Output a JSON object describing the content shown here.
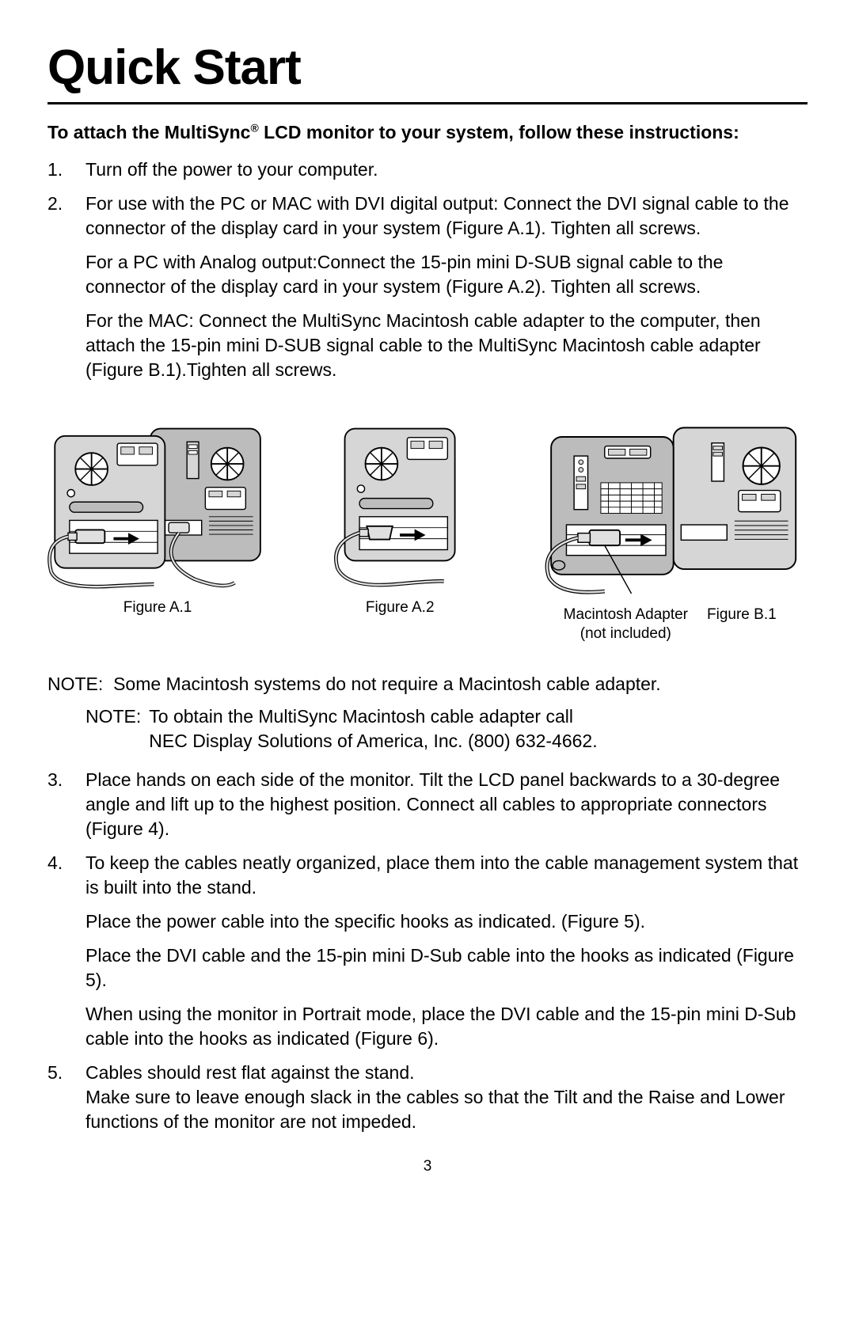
{
  "title": "Quick Start",
  "intro_html": "To attach the MultiSync<sup>®</sup> LCD monitor to your system, follow these instructions:",
  "step1": {
    "num": "1.",
    "text": "Turn off the power to your computer."
  },
  "step2": {
    "num": "2.",
    "p1": "For use with the PC or MAC with DVI digital output: Connect the DVI signal cable to the connector of the display card in your system (Figure A.1). Tighten all screws.",
    "p2": "For a PC with Analog output:Connect the 15-pin mini D-SUB signal cable to the connector of the display card in your system (Figure A.2). Tighten all screws.",
    "p3": "For the MAC: Connect the MultiSync Macintosh cable adapter to the computer, then attach the 15-pin mini D-SUB signal cable to the MultiSync Macintosh cable adapter (Figure B.1).Tighten all screws."
  },
  "figures": {
    "a1": {
      "caption": "Figure A.1"
    },
    "a2": {
      "caption": "Figure A.2"
    },
    "b1": {
      "caption1": "Macintosh Adapter",
      "caption1b": "(not included)",
      "caption2": "Figure B.1"
    }
  },
  "note_main_label": "NOTE:",
  "note_main": "Some Macintosh systems do not require a Macintosh cable adapter.",
  "note_sub_label": "NOTE:",
  "note_sub_l1": "To obtain the MultiSync Macintosh cable adapter call",
  "note_sub_l2": "NEC Display Solutions of America, Inc. (800) 632-4662.",
  "step3": {
    "num": "3.",
    "text": "Place hands on each side of the monitor. Tilt the LCD panel backwards to a 30-degree angle and lift up to the highest position. Connect all cables to appropriate connectors (Figure 4)."
  },
  "step4": {
    "num": "4.",
    "p1": "To keep the cables neatly organized, place them into the cable management system that is built into the stand.",
    "p2": "Place the power cable into the specific hooks as indicated. (Figure 5).",
    "p3": "Place the DVI cable and the 15-pin mini D-Sub cable into the hooks as indicated (Figure 5).",
    "p4": "When using the monitor in Portrait mode, place the DVI cable and the 15-pin mini D-Sub cable into the hooks as indicated (Figure 6)."
  },
  "step5": {
    "num": "5.",
    "p1": "Cables should rest flat against the stand.",
    "p2": "Make sure to leave enough slack in the cables so that the Tilt and the Raise and Lower functions of the monitor are not impeded."
  },
  "page_number": "3",
  "diagram": {
    "body_fill": "#d6d6d6",
    "shadow_fill": "#bcbcbc",
    "stroke": "#000000",
    "stroke_w": 2,
    "port_fill": "#ffffff",
    "fan_fill": "#ffffff",
    "cable_fill": "#e0e0e0"
  }
}
